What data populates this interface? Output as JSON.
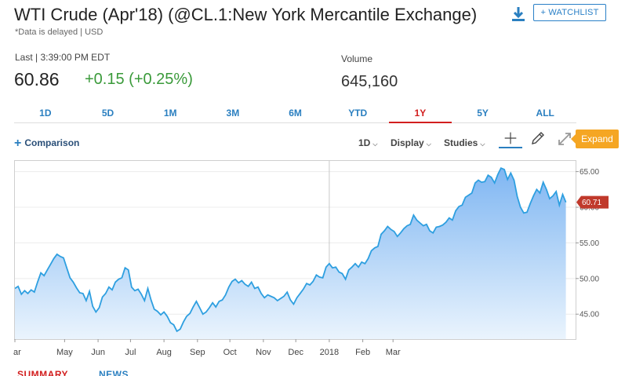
{
  "header": {
    "title": "WTI Crude (Apr'18) (@CL.1:New York Mercantile Exchange)",
    "subtitle": "*Data is delayed | USD",
    "watchlist_label": "+ WATCHLIST"
  },
  "quote": {
    "last_label": "Last | 3:39:00 PM EDT",
    "price": "60.86",
    "change": "+0.15 (+0.25%)",
    "volume_label": "Volume",
    "volume": "645,160"
  },
  "range_tabs": [
    {
      "label": "1D",
      "active": false
    },
    {
      "label": "5D",
      "active": false
    },
    {
      "label": "1M",
      "active": false
    },
    {
      "label": "3M",
      "active": false
    },
    {
      "label": "6M",
      "active": false
    },
    {
      "label": "YTD",
      "active": false
    },
    {
      "label": "1Y",
      "active": true
    },
    {
      "label": "5Y",
      "active": false
    },
    {
      "label": "ALL",
      "active": false
    }
  ],
  "toolbar": {
    "comparison_label": "Comparison",
    "interval_label": "1D",
    "display_label": "Display",
    "studies_label": "Studies",
    "expand_label": "Expand"
  },
  "bottom_tabs": [
    {
      "label": "SUMMARY",
      "color": "#d21f1f"
    },
    {
      "label": "NEWS",
      "color": "#2a7fc0"
    }
  ],
  "colors": {
    "accent": "#2a7fc0",
    "positive": "#3a9a3a",
    "active_tab": "#d21f1f",
    "expand": "#f5a623",
    "line": "#2e9fe0",
    "last_badge": "#c0392b"
  },
  "chart_data": {
    "type": "area",
    "x_labels": [
      "ar",
      "May",
      "Jun",
      "Jul",
      "Aug",
      "Sep",
      "Oct",
      "Nov",
      "Dec",
      "2018",
      "Feb",
      "Mar"
    ],
    "y_ticks": [
      "65.00",
      "60.00",
      "55.00",
      "50.00",
      "45.00"
    ],
    "y_tick_values": [
      65,
      60,
      55,
      50,
      45
    ],
    "ylim": [
      41.5,
      66.5
    ],
    "last_value_label": "60.71",
    "last_value": 60.71,
    "grid": true,
    "start_date": "2017-03-16",
    "series": [
      {
        "values": [
          [
            0,
            48.6
          ],
          [
            3,
            48.9
          ],
          [
            6,
            47.8
          ],
          [
            9,
            48.3
          ],
          [
            12,
            47.9
          ],
          [
            15,
            48.4
          ],
          [
            18,
            48.1
          ],
          [
            21,
            49.5
          ],
          [
            24,
            50.8
          ],
          [
            27,
            50.4
          ],
          [
            30,
            51.2
          ],
          [
            33,
            52.0
          ],
          [
            36,
            52.8
          ],
          [
            39,
            53.4
          ],
          [
            42,
            53.1
          ],
          [
            45,
            52.9
          ],
          [
            48,
            51.5
          ],
          [
            51,
            50.1
          ],
          [
            54,
            49.5
          ],
          [
            57,
            48.7
          ],
          [
            60,
            48.0
          ],
          [
            63,
            47.9
          ],
          [
            66,
            46.9
          ],
          [
            69,
            48.2
          ],
          [
            72,
            46.1
          ],
          [
            75,
            45.3
          ],
          [
            78,
            45.9
          ],
          [
            81,
            47.4
          ],
          [
            84,
            47.9
          ],
          [
            87,
            48.8
          ],
          [
            90,
            48.4
          ],
          [
            93,
            49.5
          ],
          [
            96,
            49.9
          ],
          [
            99,
            50.1
          ],
          [
            102,
            51.5
          ],
          [
            105,
            51.2
          ],
          [
            108,
            48.8
          ],
          [
            111,
            48.3
          ],
          [
            114,
            48.5
          ],
          [
            117,
            47.8
          ],
          [
            120,
            46.9
          ],
          [
            123,
            48.6
          ],
          [
            126,
            47.0
          ],
          [
            129,
            45.7
          ],
          [
            132,
            45.4
          ],
          [
            135,
            44.9
          ],
          [
            138,
            45.3
          ],
          [
            141,
            44.7
          ],
          [
            144,
            43.8
          ],
          [
            147,
            43.5
          ],
          [
            150,
            42.6
          ],
          [
            153,
            42.9
          ],
          [
            156,
            43.9
          ],
          [
            159,
            44.7
          ],
          [
            162,
            45.1
          ],
          [
            165,
            46.0
          ],
          [
            168,
            46.8
          ],
          [
            171,
            45.9
          ],
          [
            174,
            45.0
          ],
          [
            177,
            45.3
          ],
          [
            180,
            45.9
          ],
          [
            183,
            46.6
          ],
          [
            186,
            46.0
          ],
          [
            189,
            46.8
          ],
          [
            192,
            47.0
          ],
          [
            195,
            47.7
          ],
          [
            198,
            48.8
          ],
          [
            201,
            49.6
          ],
          [
            204,
            49.9
          ],
          [
            207,
            49.4
          ],
          [
            210,
            49.7
          ],
          [
            213,
            49.2
          ],
          [
            216,
            48.9
          ],
          [
            219,
            49.5
          ],
          [
            222,
            48.6
          ],
          [
            225,
            48.8
          ],
          [
            228,
            47.9
          ],
          [
            231,
            47.3
          ],
          [
            234,
            47.7
          ],
          [
            237,
            47.5
          ],
          [
            240,
            47.3
          ],
          [
            243,
            46.9
          ],
          [
            246,
            47.2
          ],
          [
            249,
            47.5
          ],
          [
            252,
            48.1
          ],
          [
            255,
            47.0
          ],
          [
            258,
            46.4
          ],
          [
            261,
            47.3
          ],
          [
            264,
            47.9
          ],
          [
            267,
            48.5
          ],
          [
            270,
            49.3
          ],
          [
            273,
            49.1
          ],
          [
            276,
            49.6
          ],
          [
            279,
            50.5
          ],
          [
            282,
            50.2
          ],
          [
            285,
            50.1
          ],
          [
            288,
            51.6
          ],
          [
            291,
            52.1
          ],
          [
            294,
            51.5
          ],
          [
            297,
            51.6
          ],
          [
            300,
            50.9
          ],
          [
            303,
            50.7
          ],
          [
            306,
            49.9
          ],
          [
            309,
            51.2
          ],
          [
            312,
            51.6
          ],
          [
            315,
            52.1
          ],
          [
            318,
            51.6
          ],
          [
            321,
            52.3
          ],
          [
            324,
            52.1
          ],
          [
            327,
            52.8
          ],
          [
            330,
            53.9
          ],
          [
            333,
            54.3
          ],
          [
            336,
            54.5
          ],
          [
            339,
            56.2
          ],
          [
            342,
            56.7
          ],
          [
            345,
            57.3
          ],
          [
            348,
            56.9
          ],
          [
            351,
            56.6
          ],
          [
            354,
            55.9
          ],
          [
            357,
            56.4
          ],
          [
            360,
            57.0
          ],
          [
            363,
            57.4
          ],
          [
            366,
            57.6
          ],
          [
            369,
            58.9
          ],
          [
            372,
            58.2
          ],
          [
            375,
            57.8
          ],
          [
            378,
            57.4
          ],
          [
            381,
            57.6
          ],
          [
            384,
            56.7
          ],
          [
            387,
            56.4
          ],
          [
            390,
            57.2
          ],
          [
            393,
            57.3
          ],
          [
            396,
            57.5
          ],
          [
            399,
            57.9
          ],
          [
            402,
            58.5
          ],
          [
            405,
            58.2
          ],
          [
            408,
            59.5
          ],
          [
            411,
            60.1
          ],
          [
            414,
            60.3
          ],
          [
            417,
            61.4
          ],
          [
            420,
            61.7
          ],
          [
            423,
            62.0
          ],
          [
            426,
            63.4
          ],
          [
            429,
            63.8
          ],
          [
            432,
            63.5
          ],
          [
            435,
            63.6
          ],
          [
            438,
            64.5
          ],
          [
            441,
            64.2
          ],
          [
            444,
            63.4
          ],
          [
            447,
            64.6
          ],
          [
            450,
            65.5
          ],
          [
            453,
            65.3
          ],
          [
            456,
            63.9
          ],
          [
            459,
            64.8
          ],
          [
            462,
            63.8
          ],
          [
            465,
            61.5
          ],
          [
            468,
            60.0
          ],
          [
            471,
            59.2
          ],
          [
            474,
            59.3
          ],
          [
            477,
            60.5
          ],
          [
            480,
            61.6
          ],
          [
            483,
            62.5
          ],
          [
            486,
            62.0
          ],
          [
            489,
            63.5
          ],
          [
            492,
            62.5
          ],
          [
            495,
            61.2
          ],
          [
            498,
            61.6
          ],
          [
            501,
            62.2
          ],
          [
            504,
            60.3
          ],
          [
            507,
            61.8
          ],
          [
            510,
            60.7
          ]
        ]
      }
    ]
  }
}
